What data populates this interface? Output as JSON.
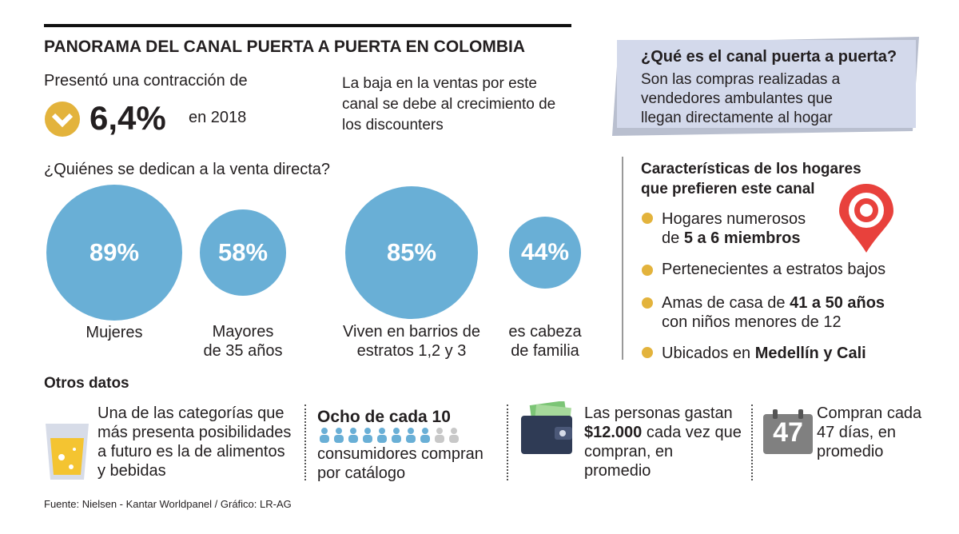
{
  "header": {
    "title": "PANORAMA DEL CANAL PUERTA A PUERTA EN COLOMBIA",
    "contraction_intro": "Presentó una contracción de",
    "contraction_value": "6,4%",
    "contraction_year": "en 2018",
    "note": "La baja en la ventas por este canal se debe al crecimiento de los discounters"
  },
  "definition": {
    "question": "¿Qué es el canal puerta a puerta?",
    "answer": "Son las compras realizadas a vendedores ambulantes que llegan directamente al hogar"
  },
  "sellers": {
    "title": "¿Quiénes se dedican a la venta directa?",
    "items": [
      {
        "value": "89%",
        "label": "Mujeres"
      },
      {
        "value": "58%",
        "label": "Mayores de 35 años"
      },
      {
        "value": "85%",
        "label": "Viven en barrios de estratos 1,2 y 3"
      },
      {
        "value": "44%",
        "label": "es cabeza de familia"
      }
    ]
  },
  "households": {
    "title": "Características de los hogares que prefieren este canal",
    "items": [
      {
        "text": "Hogares numerosos de",
        "bold": "5 a 6 miembros"
      },
      {
        "text": "Pertenecientes a estratos bajos"
      },
      {
        "text": "Amas de casa de",
        "bold": "41 a 50 años",
        "after": "con niños menores de 12"
      },
      {
        "text": "Ubicados en",
        "bold": "Medellín y Cali"
      }
    ]
  },
  "other": {
    "title": "Otros datos",
    "items": [
      {
        "text": "Una de las categorías que más presenta posibilidades a futuro es la de alimentos y bebidas"
      },
      {
        "bold": "Ocho de cada 10",
        "after": "consumidores compran por catálogo"
      },
      {
        "text": "Las personas gastan",
        "bold": "$12.000",
        "after": "cada vez que compran, en promedio"
      },
      {
        "icon": "47",
        "text": "Compran cada 47 días, en promedio"
      }
    ]
  },
  "source": "Fuente: Nielsen - Kantar Worldpanel / Gráfico: LR-AG"
}
